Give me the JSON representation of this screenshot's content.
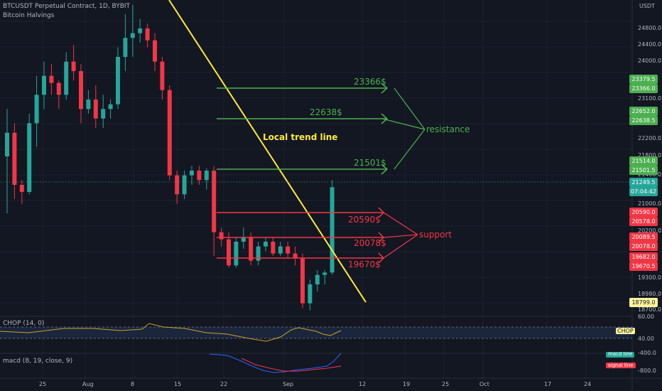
{
  "header": {
    "symbol_line": "BTCUSDT Perpetual Contract, 1D, BYBIT",
    "indicator_line": "Bitcoin Halvings",
    "currency": "USDT"
  },
  "price_axis": {
    "ticks": [
      "24800.0",
      "24400.0",
      "24000.0",
      "23100.0",
      "22200.0",
      "21800.0",
      "21400.0",
      "21000.0",
      "20200.0",
      "19300.0",
      "18980.0",
      "18700.0"
    ],
    "labels": [
      {
        "text": "23379.5",
        "color": "#4caf50"
      },
      {
        "text": "23366.0",
        "color": "#4caf50"
      },
      {
        "text": "22652.0",
        "color": "#4caf50"
      },
      {
        "text": "22638.5",
        "color": "#4caf50"
      },
      {
        "text": "21514.0",
        "color": "#4caf50"
      },
      {
        "text": "21501.5",
        "color": "#4caf50"
      },
      {
        "text": "21249.5",
        "color": "#26a69a"
      },
      {
        "text": "07:04:42",
        "color": "#26a69a"
      },
      {
        "text": "20590.0",
        "color": "#f23645"
      },
      {
        "text": "20578.0",
        "color": "#f23645"
      },
      {
        "text": "20089.5",
        "color": "#f23645"
      },
      {
        "text": "20078.0",
        "color": "#f23645"
      },
      {
        "text": "19682.0",
        "color": "#f23645"
      },
      {
        "text": "19670.5",
        "color": "#f23645"
      },
      {
        "text": "18799.0",
        "color": "#fff59d"
      }
    ]
  },
  "annotations": {
    "trend_label": "Local trend line",
    "resistance_word": "resistance",
    "support_word": "support",
    "resistance_levels": [
      "23366$",
      "22638$",
      "21501$"
    ],
    "support_levels": [
      "20590$",
      "20078$",
      "19670$"
    ],
    "colors": {
      "resistance": "#4caf50",
      "support": "#f23645",
      "trend": "#ffeb3b"
    }
  },
  "chop": {
    "title": "CHOP (14, 0)",
    "badge": "CHOP",
    "scale": [
      "60.00",
      "40.00"
    ]
  },
  "macd": {
    "title": "macd (8, 19, close, 9)",
    "macd_label": "macd line",
    "signal_label": "signal line",
    "scale": [
      "-400.0",
      "-800.0"
    ]
  },
  "time_axis": [
    "25",
    "Aug",
    "8",
    "15",
    "22",
    "Sep",
    "12",
    "19",
    "25",
    "Oct",
    "17",
    "24"
  ],
  "chart_data": {
    "type": "candlestick",
    "title": "BTCUSDT Perpetual Contract, 1D, BYBIT",
    "ylim": [
      18600,
      25200
    ],
    "candles": [
      [
        21900,
        22900,
        20700,
        22400
      ],
      [
        22400,
        22600,
        21000,
        21300
      ],
      [
        21300,
        21400,
        20900,
        21150
      ],
      [
        21150,
        22800,
        21100,
        22600
      ],
      [
        22600,
        23600,
        22100,
        23200
      ],
      [
        23200,
        23900,
        22900,
        23600
      ],
      [
        23600,
        23850,
        23200,
        23450
      ],
      [
        23450,
        23500,
        22900,
        23200
      ],
      [
        23200,
        24100,
        23100,
        23900
      ],
      [
        23900,
        24250,
        23500,
        23700
      ],
      [
        23700,
        23850,
        22600,
        22900
      ],
      [
        22900,
        23300,
        22800,
        23100
      ],
      [
        23100,
        23400,
        22500,
        22700
      ],
      [
        22700,
        23200,
        22500,
        22900
      ],
      [
        22900,
        23100,
        22700,
        23000
      ],
      [
        23000,
        24200,
        22900,
        24000
      ],
      [
        24000,
        24900,
        23700,
        24400
      ],
      [
        24400,
        25100,
        24000,
        24500
      ],
      [
        24500,
        24800,
        24300,
        24600
      ],
      [
        24600,
        24700,
        24200,
        24350
      ],
      [
        24350,
        24500,
        23700,
        23900
      ],
      [
        23900,
        24000,
        23100,
        23300
      ],
      [
        23300,
        23400,
        21400,
        21500
      ],
      [
        21500,
        21600,
        20900,
        21100
      ],
      [
        21100,
        21600,
        21000,
        21500
      ],
      [
        21500,
        21700,
        21300,
        21600
      ],
      [
        21600,
        21700,
        21300,
        21400
      ],
      [
        21400,
        21650,
        21200,
        21600
      ],
      [
        21600,
        21700,
        19800,
        20300
      ],
      [
        20300,
        20400,
        20000,
        20150
      ],
      [
        20150,
        20300,
        19550,
        19600
      ],
      [
        19600,
        20200,
        19550,
        20100
      ],
      [
        20100,
        20400,
        19950,
        20200
      ],
      [
        20200,
        20300,
        19600,
        19700
      ],
      [
        19700,
        20100,
        19600,
        20000
      ],
      [
        20000,
        20200,
        19900,
        20100
      ],
      [
        20100,
        20200,
        19800,
        19850
      ],
      [
        19850,
        20100,
        19800,
        20000
      ],
      [
        20000,
        20100,
        19750,
        19850
      ],
      [
        19850,
        20000,
        19600,
        19750
      ],
      [
        19750,
        19850,
        18700,
        18800
      ],
      [
        18800,
        19300,
        18650,
        19200
      ],
      [
        19200,
        19500,
        19050,
        19400
      ],
      [
        19400,
        19500,
        19200,
        19450
      ],
      [
        19450,
        21400,
        19400,
        21249.5
      ]
    ]
  }
}
